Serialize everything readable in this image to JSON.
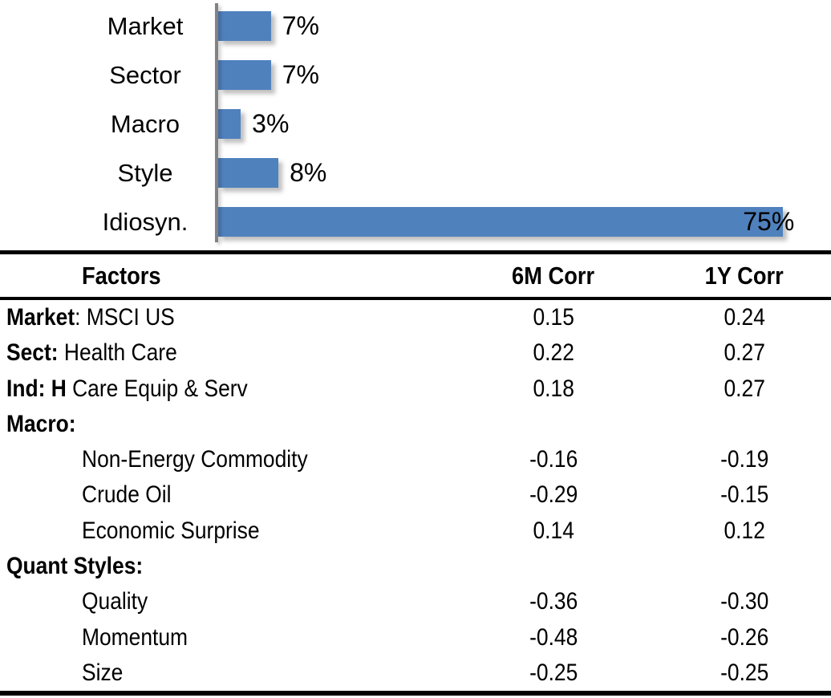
{
  "chart_data": {
    "type": "bar",
    "orientation": "horizontal",
    "title": "",
    "xlabel": "",
    "ylabel": "",
    "xlim": [
      0,
      80
    ],
    "grid": false,
    "legend": false,
    "bar_color": "#4F81BD",
    "axis_color": "#828282",
    "categories": [
      "Market",
      "Sector",
      "Macro",
      "Style",
      "Idiosyn."
    ],
    "values": [
      7,
      7,
      3,
      8,
      75
    ],
    "data_labels": [
      "7%",
      "7%",
      "3%",
      "8%",
      "75%"
    ],
    "data_label_position": "outside-end"
  },
  "table": {
    "columns": [
      "Factors",
      "6M Corr",
      "1Y Corr"
    ],
    "rows": [
      {
        "label_bold": "Market",
        "label_rest": ": MSCI US",
        "indent": false,
        "corr_6m": "0.15",
        "corr_1y": "0.24"
      },
      {
        "label_bold": "Sect:",
        "label_rest": " Health Care",
        "indent": false,
        "corr_6m": "0.22",
        "corr_1y": "0.27"
      },
      {
        "label_bold": "Ind: H",
        "label_rest": " Care Equip & Serv",
        "indent": false,
        "corr_6m": "0.18",
        "corr_1y": "0.27"
      },
      {
        "label_bold": "Macro:",
        "label_rest": "",
        "indent": false,
        "corr_6m": "",
        "corr_1y": ""
      },
      {
        "label_bold": "",
        "label_rest": "Non-Energy Commodity",
        "indent": true,
        "corr_6m": "-0.16",
        "corr_1y": "-0.19"
      },
      {
        "label_bold": "",
        "label_rest": "Crude Oil",
        "indent": true,
        "corr_6m": "-0.29",
        "corr_1y": "-0.15"
      },
      {
        "label_bold": "",
        "label_rest": "Economic Surprise",
        "indent": true,
        "corr_6m": "0.14",
        "corr_1y": "0.12"
      },
      {
        "label_bold": "Quant Styles:",
        "label_rest": "",
        "indent": false,
        "corr_6m": "",
        "corr_1y": ""
      },
      {
        "label_bold": "",
        "label_rest": "Quality",
        "indent": true,
        "corr_6m": "-0.36",
        "corr_1y": "-0.30"
      },
      {
        "label_bold": "",
        "label_rest": "Momentum",
        "indent": true,
        "corr_6m": "-0.48",
        "corr_1y": "-0.26"
      },
      {
        "label_bold": "",
        "label_rest": "Size",
        "indent": true,
        "corr_6m": "-0.25",
        "corr_1y": "-0.25"
      }
    ]
  }
}
